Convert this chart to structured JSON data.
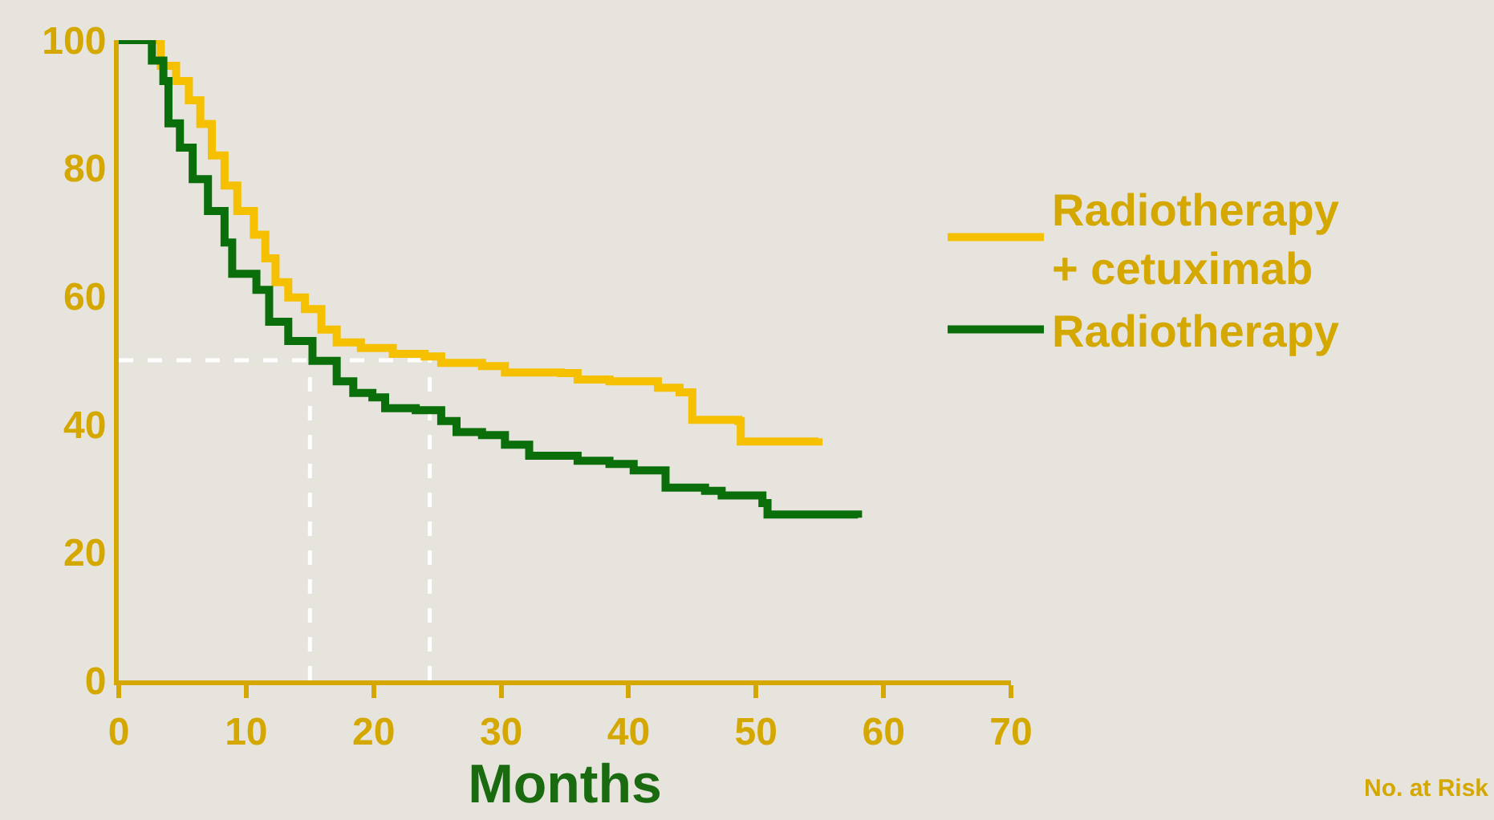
{
  "chart_data": {
    "type": "step",
    "xlabel": "Months",
    "xlim": [
      0,
      70
    ],
    "xticks": [
      0,
      10,
      20,
      30,
      40,
      50,
      60,
      70
    ],
    "ylim": [
      0,
      100
    ],
    "yticks": [
      0,
      20,
      40,
      60,
      80,
      100
    ],
    "grid": false,
    "legend": "right",
    "marker": "none",
    "line_style": "solid",
    "series": [
      {
        "name": "Radiotherapy + cetuximab",
        "color": "#f5c000",
        "x": [
          0,
          3.3,
          4.5,
          5.5,
          6.4,
          7.3,
          8.3,
          9.3,
          10.6,
          11.5,
          12.3,
          13.3,
          14.6,
          15.9,
          17.1,
          19,
          21.5,
          24,
          25.3,
          28.5,
          30.3,
          34.7,
          36,
          38.5,
          42.3,
          44,
          45,
          48.6,
          48.8,
          54.9
        ],
        "values": [
          100,
          96,
          93.6,
          90.6,
          86.9,
          82,
          77.3,
          73.3,
          69.6,
          65.9,
          62.2,
          59.8,
          58,
          54.8,
          52.8,
          51.9,
          51,
          50.6,
          49.6,
          49.1,
          48.1,
          48,
          47,
          46.7,
          45.7,
          45,
          40.7,
          40.5,
          37.3,
          37.8
        ]
      },
      {
        "name": "Radiotherapy",
        "color": "#0a6e0a",
        "x": [
          0,
          2.6,
          3.5,
          3.9,
          4.8,
          5.8,
          7,
          8.3,
          8.9,
          10.8,
          11.8,
          13.3,
          15.2,
          17.1,
          18.4,
          19.9,
          20.9,
          23.3,
          25.3,
          26.5,
          28.5,
          30.3,
          32.2,
          36,
          38.5,
          40.4,
          42.9,
          46,
          47.3,
          50.5,
          50.9,
          58
        ],
        "values": [
          100,
          96.8,
          93.6,
          87,
          83.2,
          78.3,
          73.3,
          68.4,
          63.5,
          61,
          56,
          53,
          49.9,
          46.7,
          44.9,
          44.2,
          42.5,
          42.2,
          40.5,
          38.8,
          38.3,
          36.8,
          35.1,
          34.3,
          33.8,
          32.8,
          30.1,
          29.6,
          28.9,
          27.7,
          25.9,
          25.4
        ]
      }
    ],
    "ref_lines": [
      {
        "axis": "y",
        "value": 50,
        "color": "#ffffff",
        "line_style": "dashed"
      },
      {
        "axis": "x",
        "value": 15,
        "color": "#ffffff",
        "line_style": "dashed"
      },
      {
        "axis": "x",
        "value": 24.4,
        "color": "#ffffff",
        "line_style": "dashed"
      }
    ],
    "annotations": [
      "No. at Risk"
    ]
  }
}
